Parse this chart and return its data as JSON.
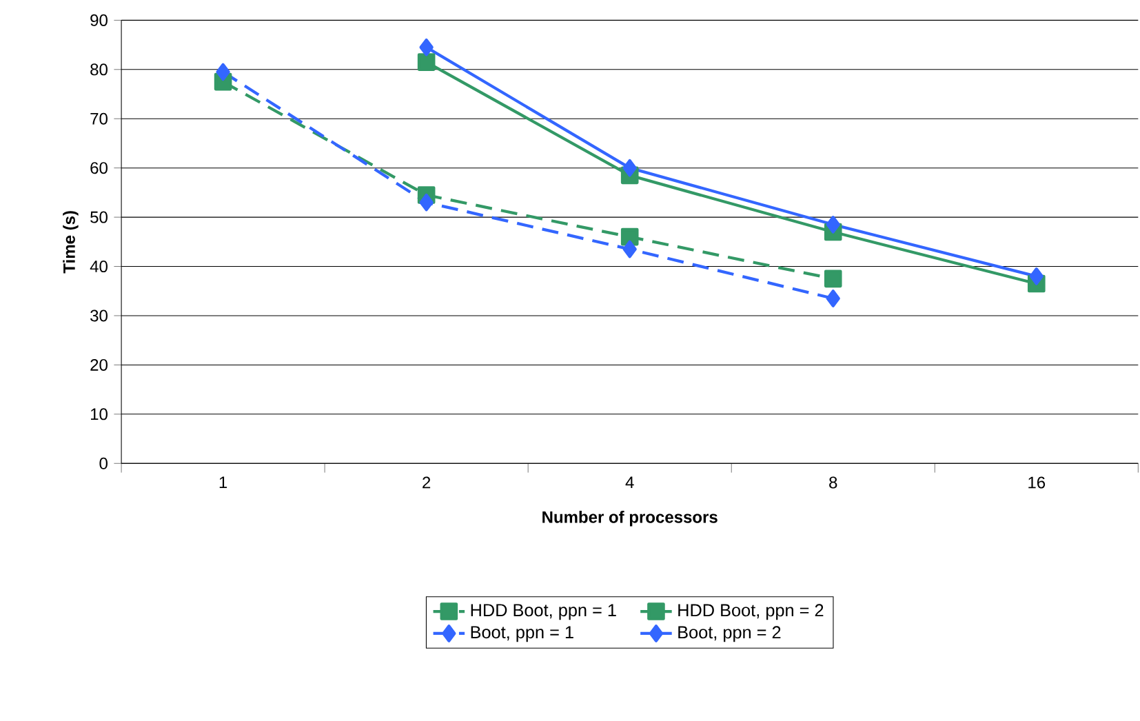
{
  "chart_data": {
    "type": "line",
    "xlabel": "Number of processors",
    "ylabel": "Time (s)",
    "categories": [
      "1",
      "2",
      "4",
      "8",
      "16"
    ],
    "series": [
      {
        "name": "HDD Boot, ppn = 1",
        "color": "#339966",
        "marker": "square",
        "line_style": "dashed",
        "values": [
          77.5,
          54.5,
          46,
          37.5,
          null
        ]
      },
      {
        "name": "HDD Boot, ppn = 2",
        "color": "#339966",
        "marker": "square",
        "line_style": "solid",
        "values": [
          null,
          81.5,
          58.5,
          47,
          36.5
        ]
      },
      {
        "name": "Boot, ppn = 1",
        "color": "#3366ff",
        "marker": "diamond",
        "line_style": "dashed",
        "values": [
          79.5,
          53,
          43.5,
          33.5,
          null
        ]
      },
      {
        "name": "Boot, ppn = 2",
        "color": "#3366ff",
        "marker": "diamond",
        "line_style": "solid",
        "values": [
          null,
          84.5,
          60,
          48.5,
          38
        ]
      }
    ],
    "ylim": [
      0,
      90
    ],
    "yticks": [
      0,
      10,
      20,
      30,
      40,
      50,
      60,
      70,
      80,
      90
    ],
    "grid": "y",
    "legend": "bottom"
  }
}
